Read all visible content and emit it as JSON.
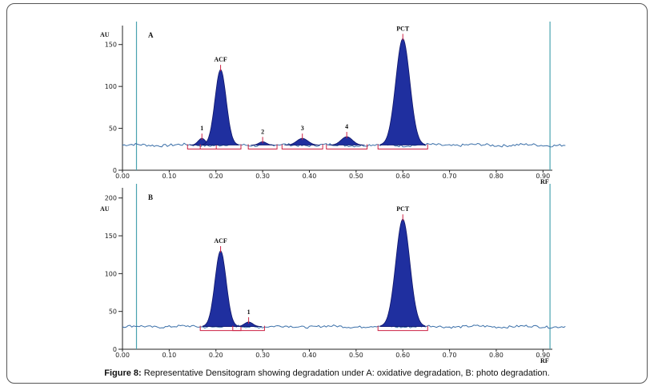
{
  "caption": {
    "label": "Figure 8:",
    "text": "Representative Densitogram showing degradation under A: oxidative degradation, B: photo degradation."
  },
  "colors": {
    "peak_fill": "#1f2f9f",
    "baseline": "#3a6fa8",
    "marker_line": "#4aa3b0",
    "bracket": "#cc2244"
  },
  "chart_data": [
    {
      "type": "area",
      "panel_label": "A",
      "ylabel": "AU",
      "xlabel": "RF",
      "xlim": [
        0.0,
        0.92
      ],
      "ylim": [
        0,
        165
      ],
      "x_ticks": [
        "0.00",
        "0.10",
        "0.20",
        "0.30",
        "0.40",
        "0.50",
        "0.60",
        "0.70",
        "0.80",
        "0.90"
      ],
      "y_ticks": [
        "0",
        "50",
        "100",
        "150"
      ],
      "baseline": 30,
      "markers_rf": [
        0.03,
        0.915
      ],
      "peaks": [
        {
          "label": "1",
          "rf": 0.17,
          "height": 38,
          "width": 0.008
        },
        {
          "label": "ACF",
          "rf": 0.21,
          "height": 120,
          "width": 0.012
        },
        {
          "label": "2",
          "rf": 0.3,
          "height": 34,
          "width": 0.008
        },
        {
          "label": "3",
          "rf": 0.385,
          "height": 38,
          "width": 0.012
        },
        {
          "label": "4",
          "rf": 0.48,
          "height": 40,
          "width": 0.012
        },
        {
          "label": "PCT",
          "rf": 0.6,
          "height": 157,
          "width": 0.015
        }
      ]
    },
    {
      "type": "area",
      "panel_label": "B",
      "ylabel": "AU",
      "xlabel": "RF",
      "xlim": [
        0.0,
        0.92
      ],
      "ylim": [
        0,
        205
      ],
      "x_ticks": [
        "0.00",
        "0.10",
        "0.20",
        "0.30",
        "0.40",
        "0.50",
        "0.60",
        "0.70",
        "0.80",
        "0.90"
      ],
      "y_ticks": [
        "0",
        "50",
        "100",
        "150",
        "200"
      ],
      "baseline": 30,
      "markers_rf": [
        0.03,
        0.915
      ],
      "peaks": [
        {
          "label": "ACF",
          "rf": 0.21,
          "height": 130,
          "width": 0.012
        },
        {
          "label": "1",
          "rf": 0.27,
          "height": 36,
          "width": 0.009
        },
        {
          "label": "PCT",
          "rf": 0.6,
          "height": 172,
          "width": 0.015
        }
      ]
    }
  ]
}
